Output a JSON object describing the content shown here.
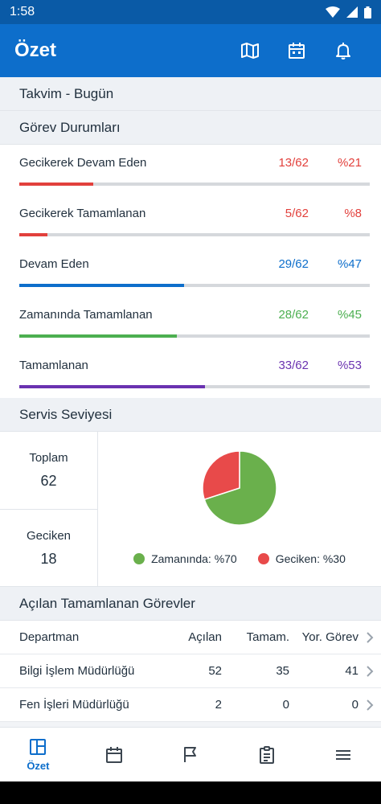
{
  "status_bar": {
    "time": "1:58"
  },
  "app_bar": {
    "title": "Özet",
    "actions": [
      "map-icon",
      "calendar-icon",
      "bell-icon"
    ]
  },
  "sections": {
    "calendar": "Takvim - Bugün",
    "task_status": "Görev Durumları",
    "service_level": "Servis Seviyesi",
    "opened_completed": "Açılan Tamamlanan Görevler"
  },
  "task_status": [
    {
      "label": "Gecikerek Devam Eden",
      "count": "13/62",
      "pct": "%21",
      "progress": 0.21,
      "color": "#e2403c"
    },
    {
      "label": "Gecikerek Tamamlanan",
      "count": "5/62",
      "pct": "%8",
      "progress": 0.08,
      "color": "#e2403c"
    },
    {
      "label": "Devam Eden",
      "count": "29/62",
      "pct": "%47",
      "progress": 0.47,
      "color": "#0d6ecb"
    },
    {
      "label": "Zamanında Tamamlanan",
      "count": "28/62",
      "pct": "%45",
      "progress": 0.45,
      "color": "#4caf50"
    },
    {
      "label": "Tamamlanan",
      "count": "33/62",
      "pct": "%53",
      "progress": 0.53,
      "color": "#6a32b0"
    }
  ],
  "service_level": {
    "total_label": "Toplam",
    "total_value": "62",
    "late_label": "Geciken",
    "late_value": "18",
    "legend": [
      {
        "label": "Zamanında: %70",
        "color": "#6ab04c"
      },
      {
        "label": "Geciken: %30",
        "color": "#e84a4a"
      }
    ]
  },
  "chart_data": {
    "type": "pie",
    "categories": [
      "Zamanında",
      "Geciken"
    ],
    "values": [
      70,
      30
    ],
    "colors": [
      "#6ab04c",
      "#e84a4a"
    ]
  },
  "table": {
    "headers": [
      "Departman",
      "Açılan",
      "Tamam.",
      "Yor. Görev"
    ],
    "rows": [
      [
        "Bilgi İşlem Müdürlüğü",
        "52",
        "35",
        "41"
      ],
      [
        "Fen İşleri Müdürlüğü",
        "2",
        "0",
        "0"
      ]
    ]
  },
  "bottom_nav": {
    "active_label": "Özet",
    "items": [
      "summary-icon",
      "calendar-icon",
      "flag-icon",
      "clipboard-icon",
      "menu-icon"
    ]
  }
}
